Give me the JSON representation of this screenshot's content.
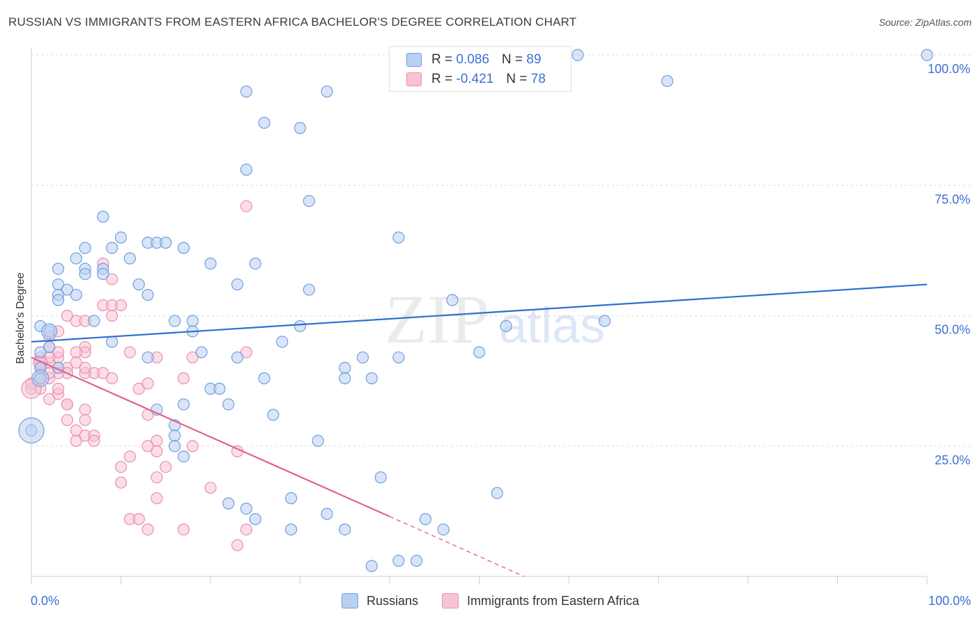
{
  "title": "RUSSIAN VS IMMIGRANTS FROM EASTERN AFRICA BACHELOR'S DEGREE CORRELATION CHART",
  "source": "Source: ZipAtlas.com",
  "watermark": {
    "zip": "ZIP",
    "atlas": "atlas"
  },
  "legend_stats": [
    {
      "r_label": "R = ",
      "r_value": "0.086",
      "n_label": "N = ",
      "n_value": "89",
      "fill": "#b9d0f0",
      "stroke": "#6e9ee0"
    },
    {
      "r_label": "R = ",
      "r_value": "-0.421",
      "n_label": "N = ",
      "n_value": "78",
      "fill": "#f7c3d3",
      "stroke": "#ea8fae"
    }
  ],
  "chart_data": {
    "type": "scatter",
    "title": "RUSSIAN VS IMMIGRANTS FROM EASTERN AFRICA BACHELOR'S DEGREE CORRELATION CHART",
    "xlabel": "",
    "ylabel": "Bachelor's Degree",
    "xlim": [
      0,
      100
    ],
    "ylim": [
      0,
      100
    ],
    "x_tick_labels": [
      "0.0%",
      "100.0%"
    ],
    "y_tick_labels": [
      {
        "value": 25,
        "label": "25.0%"
      },
      {
        "value": 50,
        "label": "50.0%"
      },
      {
        "value": 75,
        "label": "75.0%"
      },
      {
        "value": 100,
        "label": "100.0%"
      }
    ],
    "colors": {
      "russians": "#6e9ee0",
      "russians_fill": "#b9d0f0",
      "russians_line": "#2e6fce",
      "eastafrica": "#ea8fae",
      "eastafrica_fill": "#f7c3d3",
      "eastafrica_line": "#e0648f",
      "grid": "#dcdcdc",
      "axis_label": "#3b6fd4"
    },
    "series": [
      {
        "name": "Russians",
        "trend": {
          "x0": 0,
          "y0": 45.0,
          "x1": 100,
          "y1": 56.0
        },
        "points": [
          [
            100,
            100
          ],
          [
            61,
            100
          ],
          [
            71,
            95
          ],
          [
            24,
            93
          ],
          [
            33,
            93
          ],
          [
            26,
            87
          ],
          [
            30,
            86
          ],
          [
            24,
            78
          ],
          [
            31,
            72
          ],
          [
            8,
            69
          ],
          [
            41,
            65
          ],
          [
            10,
            65
          ],
          [
            13,
            64
          ],
          [
            14,
            64
          ],
          [
            6,
            63
          ],
          [
            9,
            63
          ],
          [
            15,
            64
          ],
          [
            17,
            63
          ],
          [
            5,
            61
          ],
          [
            11,
            61
          ],
          [
            20,
            60
          ],
          [
            25,
            60
          ],
          [
            3,
            59
          ],
          [
            6,
            59
          ],
          [
            8,
            59
          ],
          [
            6,
            58
          ],
          [
            8,
            58
          ],
          [
            23,
            56
          ],
          [
            3,
            56
          ],
          [
            4,
            55
          ],
          [
            12,
            56
          ],
          [
            31,
            55
          ],
          [
            13,
            54
          ],
          [
            3,
            54
          ],
          [
            5,
            54
          ],
          [
            3,
            53
          ],
          [
            47,
            53
          ],
          [
            53,
            48
          ],
          [
            16,
            49
          ],
          [
            7,
            49
          ],
          [
            18,
            49
          ],
          [
            64,
            49
          ],
          [
            2,
            47
          ],
          [
            1,
            48
          ],
          [
            30,
            48
          ],
          [
            18,
            47
          ],
          [
            9,
            45
          ],
          [
            28,
            45
          ],
          [
            1,
            43
          ],
          [
            19,
            43
          ],
          [
            50,
            43
          ],
          [
            37,
            42
          ],
          [
            41,
            42
          ],
          [
            13,
            42
          ],
          [
            23,
            42
          ],
          [
            3,
            40
          ],
          [
            35,
            40
          ],
          [
            26,
            38
          ],
          [
            38,
            38
          ],
          [
            35,
            38
          ],
          [
            1,
            38
          ],
          [
            20,
            36
          ],
          [
            21,
            36
          ],
          [
            22,
            33
          ],
          [
            17,
            33
          ],
          [
            14,
            32
          ],
          [
            27,
            31
          ],
          [
            16,
            29
          ],
          [
            16,
            27
          ],
          [
            0,
            28
          ],
          [
            16,
            25
          ],
          [
            32,
            26
          ],
          [
            17,
            23
          ],
          [
            39,
            19
          ],
          [
            52,
            16
          ],
          [
            29,
            15
          ],
          [
            22,
            14
          ],
          [
            24,
            13
          ],
          [
            33,
            12
          ],
          [
            25,
            11
          ],
          [
            44,
            11
          ],
          [
            46,
            9
          ],
          [
            29,
            9
          ],
          [
            35,
            9
          ],
          [
            1,
            40
          ],
          [
            41,
            3
          ],
          [
            38,
            2
          ],
          [
            43,
            3
          ],
          [
            2,
            44
          ]
        ],
        "big_points": [
          [
            0,
            28,
            18
          ],
          [
            1,
            38,
            12
          ],
          [
            2,
            47,
            11
          ]
        ]
      },
      {
        "name": "Immigrants from Eastern Africa",
        "trend": {
          "x0": 0,
          "y0": 42.0,
          "x1": 40,
          "y1": 11.5,
          "dash_to_x": 55,
          "dash_to_y": 0
        },
        "points": [
          [
            24,
            71
          ],
          [
            8,
            60
          ],
          [
            9,
            57
          ],
          [
            8,
            52
          ],
          [
            9,
            52
          ],
          [
            10,
            52
          ],
          [
            9,
            50
          ],
          [
            4,
            50
          ],
          [
            5,
            49
          ],
          [
            6,
            49
          ],
          [
            3,
            47
          ],
          [
            2,
            46
          ],
          [
            2,
            44
          ],
          [
            6,
            44
          ],
          [
            6,
            43
          ],
          [
            5,
            43
          ],
          [
            11,
            43
          ],
          [
            24,
            43
          ],
          [
            14,
            42
          ],
          [
            1,
            42
          ],
          [
            3,
            42
          ],
          [
            2,
            41
          ],
          [
            1,
            40
          ],
          [
            3,
            40
          ],
          [
            4,
            40
          ],
          [
            7,
            39
          ],
          [
            6,
            39
          ],
          [
            4,
            39
          ],
          [
            3,
            39
          ],
          [
            8,
            39
          ],
          [
            9,
            38
          ],
          [
            2,
            38
          ],
          [
            0,
            36
          ],
          [
            3,
            35
          ],
          [
            2,
            34
          ],
          [
            4,
            33
          ],
          [
            4,
            33
          ],
          [
            6,
            32
          ],
          [
            4,
            30
          ],
          [
            6,
            30
          ],
          [
            13,
            31
          ],
          [
            5,
            28
          ],
          [
            6,
            27
          ],
          [
            5,
            26
          ],
          [
            7,
            27
          ],
          [
            14,
            26
          ],
          [
            13,
            25
          ],
          [
            7,
            26
          ],
          [
            18,
            25
          ],
          [
            14,
            24
          ],
          [
            23,
            24
          ],
          [
            11,
            23
          ],
          [
            10,
            21
          ],
          [
            15,
            21
          ],
          [
            14,
            19
          ],
          [
            20,
            17
          ],
          [
            10,
            18
          ],
          [
            14,
            15
          ],
          [
            11,
            11
          ],
          [
            12,
            11
          ],
          [
            13,
            9
          ],
          [
            17,
            9
          ],
          [
            24,
            9
          ],
          [
            23,
            6
          ],
          [
            1,
            36
          ],
          [
            1,
            41
          ],
          [
            2,
            39
          ],
          [
            3,
            36
          ],
          [
            1,
            38
          ],
          [
            12,
            36
          ],
          [
            13,
            37
          ],
          [
            17,
            38
          ],
          [
            18,
            42
          ],
          [
            6,
            40
          ],
          [
            2,
            42
          ],
          [
            3,
            43
          ],
          [
            5,
            41
          ],
          [
            0,
            37
          ]
        ],
        "big_points": [
          [
            0,
            36,
            14
          ],
          [
            1,
            41,
            10
          ],
          [
            1,
            38,
            9
          ]
        ]
      }
    ]
  },
  "bottom_legend": [
    {
      "label": "Russians"
    },
    {
      "label": "Immigrants from Eastern Africa"
    }
  ]
}
